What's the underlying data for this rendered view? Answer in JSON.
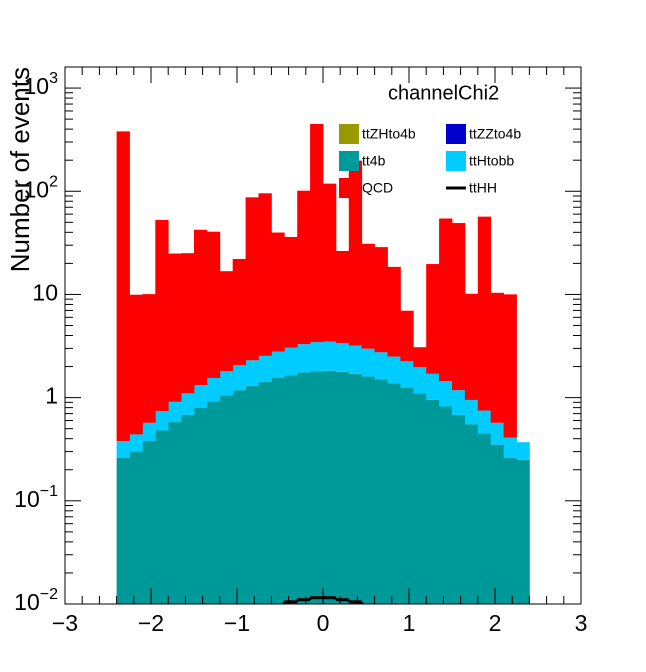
{
  "chart_data": {
    "type": "histogram",
    "legend_title": "channelChi2",
    "ylabel": "Number of events",
    "log_y": true,
    "stacked": true,
    "legend": "top-right",
    "bins": [
      -2.4,
      -2.25,
      -2.1,
      -1.95,
      -1.8,
      -1.65,
      -1.5,
      -1.35,
      -1.2,
      -1.05,
      -0.9,
      -0.75,
      -0.6,
      -0.45,
      -0.3,
      -0.15,
      0,
      0.15,
      0.3,
      0.45,
      0.6,
      0.75,
      0.9,
      1.05,
      1.2,
      1.35,
      1.5,
      1.65,
      1.8,
      1.95,
      2.1,
      2.25,
      2.4
    ],
    "series": [
      {
        "name": "ttZHto4b",
        "color": "#999900"
      },
      {
        "name": "ttZZto4b",
        "color": "#0000cc"
      },
      {
        "name": "tt4b",
        "color": "#009999",
        "values": [
          0.26,
          0.3,
          0.38,
          0.48,
          0.58,
          0.68,
          0.8,
          0.92,
          1.05,
          1.18,
          1.3,
          1.42,
          1.55,
          1.65,
          1.75,
          1.8,
          1.82,
          1.78,
          1.7,
          1.6,
          1.5,
          1.38,
          1.25,
          1.1,
          0.95,
          0.82,
          0.68,
          0.55,
          0.45,
          0.35,
          0.26,
          0.25
        ]
      },
      {
        "name": "ttHtobb",
        "color": "#00ccff",
        "values": [
          0.12,
          0.14,
          0.19,
          0.26,
          0.33,
          0.42,
          0.52,
          0.63,
          0.75,
          0.88,
          1.0,
          1.12,
          1.25,
          1.4,
          1.55,
          1.65,
          1.68,
          1.6,
          1.5,
          1.38,
          1.25,
          1.12,
          1.0,
          0.88,
          0.75,
          0.62,
          0.5,
          0.4,
          0.3,
          0.22,
          0.15,
          0.12
        ]
      },
      {
        "name": "QCD",
        "color": "#ff0000",
        "values": [
          380,
          9.5,
          9.5,
          52,
          24,
          24,
          41,
          39,
          15,
          20,
          85,
          93,
          37,
          33,
          98,
          445,
          115,
          23,
          195,
          28,
          26,
          16,
          4.7,
          1.1,
          18,
          53,
          48,
          9.2,
          56,
          9.8,
          9.6,
          0
        ]
      },
      {
        "name": "ttHH",
        "color": "#000000",
        "line": true,
        "values": [
          null,
          null,
          null,
          null,
          null,
          null,
          null,
          null,
          null,
          null,
          null,
          null,
          null,
          0.0105,
          0.011,
          0.0115,
          0.0115,
          0.011,
          0.0105,
          null,
          null,
          null,
          null,
          null,
          null,
          null,
          null,
          null,
          null,
          null,
          null,
          null
        ]
      }
    ],
    "xlim": [
      -3,
      3
    ],
    "xticks": [
      {
        "value": -3,
        "label": "−3"
      },
      {
        "value": -2,
        "label": "−2"
      },
      {
        "value": -1,
        "label": "−1"
      },
      0,
      1,
      2,
      3
    ],
    "ylim": [
      0.01,
      1600
    ],
    "yticks": [
      {
        "value": 0.01,
        "label": "10",
        "exponent": "−2"
      },
      {
        "value": 0.1,
        "label": "10",
        "exponent": "−1"
      },
      1,
      10,
      {
        "value": 100,
        "label": "10",
        "exponent": "2"
      },
      {
        "value": 1000,
        "label": "10",
        "exponent": "3"
      }
    ]
  }
}
